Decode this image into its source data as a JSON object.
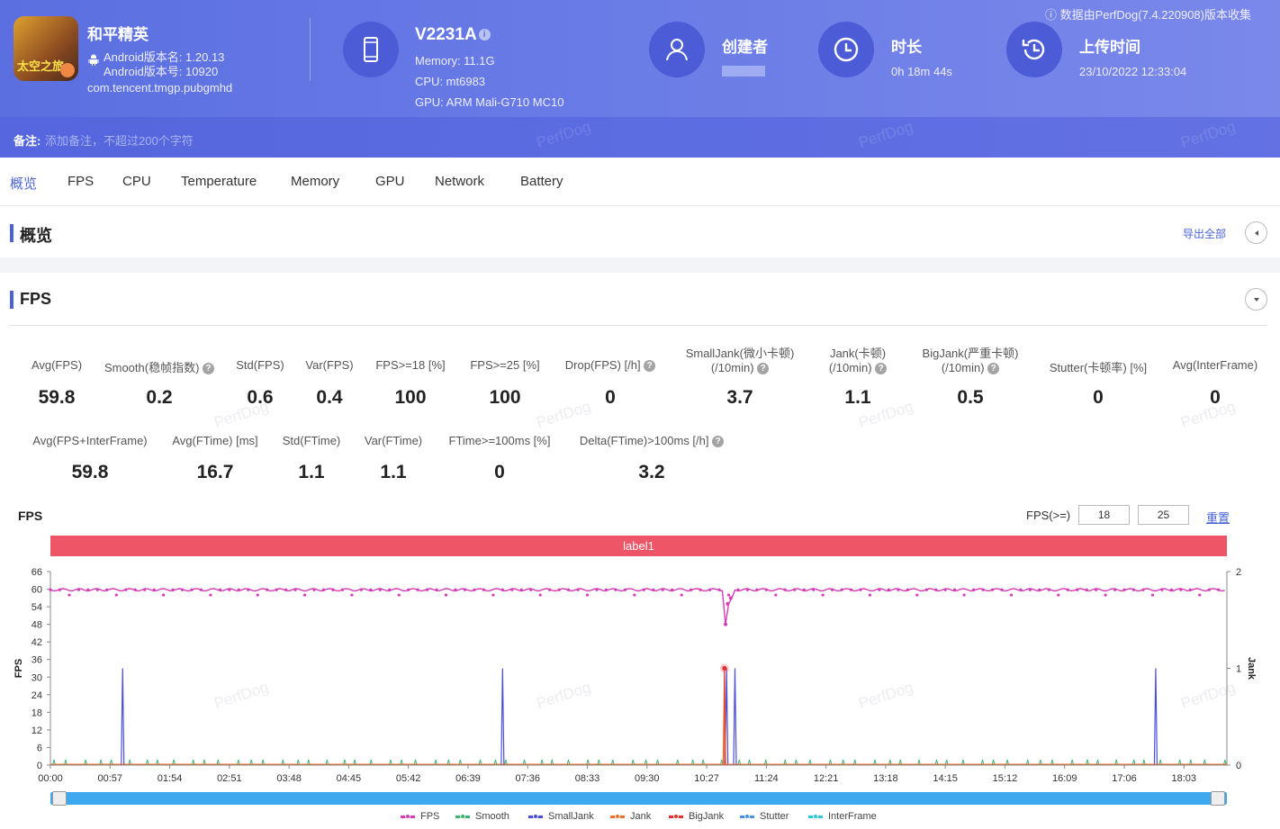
{
  "header": {
    "app_name": "和平精英",
    "app_icon_text": "太空之旅",
    "android_version_name": "Android版本名: 1.20.13",
    "android_version_code": "Android版本号: 10920",
    "package": "com.tencent.tmgp.pubgmhd",
    "device": {
      "name": "V2231A",
      "memory": "Memory: 11.1G",
      "cpu": "CPU: mt6983",
      "gpu": "GPU: ARM Mali-G710 MC10"
    },
    "creator_title": "创建者",
    "duration_title": "时长",
    "duration_value": "0h 18m 44s",
    "upload_title": "上传时间",
    "upload_value": "23/10/2022 12:33:04",
    "collected_by": "数据由PerfDog(7.4.220908)版本收集",
    "note_label": "备注:",
    "note_placeholder": "添加备注，不超过200个字符"
  },
  "watermark": "PerfDog",
  "tabs": [
    "概览",
    "FPS",
    "CPU",
    "Temperature",
    "Memory",
    "GPU",
    "Network",
    "Battery"
  ],
  "overview": {
    "title": "概览",
    "export_label": "导出全部"
  },
  "fps_section": {
    "title": "FPS",
    "metrics_row1": [
      {
        "label": "Avg(FPS)",
        "value": "59.8",
        "help": false
      },
      {
        "label": "Smooth(稳帧指数)",
        "value": "0.2",
        "help": true
      },
      {
        "label": "Std(FPS)",
        "value": "0.6",
        "help": false
      },
      {
        "label": "Var(FPS)",
        "value": "0.4",
        "help": false
      },
      {
        "label": "FPS>=18 [%]",
        "value": "100",
        "help": false
      },
      {
        "label": "FPS>=25 [%]",
        "value": "100",
        "help": false
      },
      {
        "label": "Drop(FPS) [/h]",
        "value": "0",
        "help": true
      },
      {
        "label": "SmallJank(微小卡顿)",
        "label2": "(/10min)",
        "value": "3.7",
        "help": true
      },
      {
        "label": "Jank(卡顿)",
        "label2": "(/10min)",
        "value": "1.1",
        "help": true
      },
      {
        "label": "BigJank(严重卡顿)",
        "label2": "(/10min)",
        "value": "0.5",
        "help": true
      },
      {
        "label": "Stutter(卡顿率) [%]",
        "value": "0",
        "help": false
      },
      {
        "label": "Avg(InterFrame)",
        "value": "0",
        "help": false
      }
    ],
    "metrics_row2": [
      {
        "label": "Avg(FPS+InterFrame)",
        "value": "59.8",
        "help": false
      },
      {
        "label": "Avg(FTime) [ms]",
        "value": "16.7",
        "help": false
      },
      {
        "label": "Std(FTime)",
        "value": "1.1",
        "help": false
      },
      {
        "label": "Var(FTime)",
        "value": "1.1",
        "help": false
      },
      {
        "label": "FTime>=100ms [%]",
        "value": "0",
        "help": false
      },
      {
        "label": "Delta(FTime)>100ms [/h]",
        "value": "3.2",
        "help": true
      }
    ]
  },
  "chart_controls": {
    "title": "FPS",
    "threshold_label": "FPS(>=)",
    "threshold1": "18",
    "threshold2": "25",
    "reset_label": "重置",
    "label_bar": "label1"
  },
  "chart_data": {
    "type": "line",
    "xlabel": "",
    "ylabel": "FPS",
    "y2label": "Jank",
    "ylim": [
      0,
      66
    ],
    "y2lim": [
      0,
      2
    ],
    "yticks": [
      0,
      6,
      12,
      18,
      24,
      30,
      36,
      42,
      48,
      54,
      60,
      66
    ],
    "y2ticks": [
      0,
      1,
      2
    ],
    "xticks": [
      "00:00",
      "00:57",
      "01:54",
      "02:51",
      "03:48",
      "04:45",
      "05:42",
      "06:39",
      "07:36",
      "08:33",
      "09:30",
      "10:27",
      "11:24",
      "12:21",
      "13:18",
      "14:15",
      "15:12",
      "16:09",
      "17:06",
      "18:03"
    ],
    "duration_seconds": 1124,
    "series": [
      {
        "name": "FPS",
        "color": "#d63cb8",
        "baseline": 59.8,
        "dips": [
          {
            "t": 645,
            "v": 48
          },
          {
            "t": 647,
            "v": 55
          },
          {
            "t": 650,
            "v": 57
          }
        ]
      },
      {
        "name": "Smooth",
        "color": "#3cb371"
      },
      {
        "name": "SmallJank",
        "color": "#4b4fd8",
        "events_seconds": [
          69,
          432,
          646,
          654,
          1056
        ]
      },
      {
        "name": "Jank",
        "color": "#f07030",
        "events_seconds": [
          644
        ]
      },
      {
        "name": "BigJank",
        "color": "#e03030",
        "events_seconds": [
          644
        ]
      },
      {
        "name": "Stutter",
        "color": "#4a90e2"
      },
      {
        "name": "InterFrame",
        "color": "#30c8d8"
      }
    ]
  }
}
